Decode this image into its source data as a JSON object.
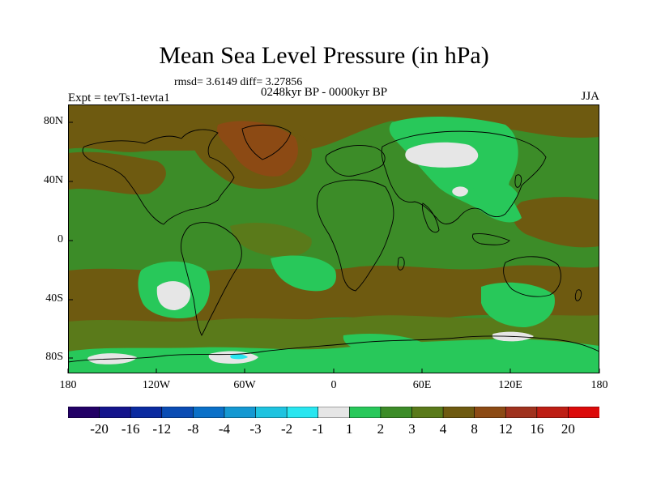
{
  "title": "Mean Sea Level Pressure (in hPa)",
  "stats": "rmsd= 3.6149 diff= 3.27856",
  "experiment": "Expt = tevTs1-tevta1",
  "period": "0248kyr BP - 0000kyr BP",
  "season": "JJA",
  "y_ticks": [
    "80N",
    "40N",
    "0",
    "40S",
    "80S"
  ],
  "x_ticks": [
    "180",
    "120W",
    "60W",
    "0",
    "60E",
    "120E",
    "180"
  ],
  "colorbar": {
    "labels": [
      "-20",
      "-16",
      "-12",
      "-8",
      "-4",
      "-3",
      "-2",
      "-1",
      "1",
      "2",
      "3",
      "4",
      "8",
      "12",
      "16",
      "20"
    ],
    "colors": [
      "#220066",
      "#14148c",
      "#0a2aa0",
      "#0a4cb4",
      "#0a70c8",
      "#1498d2",
      "#1ec3e0",
      "#28e6f0",
      "#e6e6e6",
      "#28c85a",
      "#3c8c28",
      "#5a7a1a",
      "#6e5a10",
      "#8c4a14",
      "#a0321e",
      "#be1e14",
      "#dc0a0a"
    ]
  },
  "map_colors": {
    "base": "#3c8c28",
    "brown_dark": "#6e5a10",
    "brown_red": "#8c4a14",
    "olive": "#5a7a1a",
    "light_green": "#28c85a",
    "white": "#e6e6e6",
    "cyan": "#28e6f0",
    "coast": "#000000"
  }
}
